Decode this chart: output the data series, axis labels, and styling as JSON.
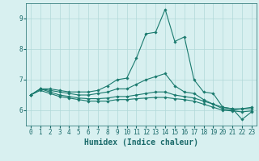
{
  "xlabel": "Humidex (Indice chaleur)",
  "x_values": [
    0,
    1,
    2,
    3,
    4,
    5,
    6,
    7,
    8,
    9,
    10,
    11,
    12,
    13,
    14,
    15,
    16,
    17,
    18,
    19,
    20,
    21,
    22,
    23
  ],
  "lines": [
    [
      6.5,
      6.7,
      6.7,
      6.65,
      6.6,
      6.6,
      6.6,
      6.65,
      6.8,
      7.0,
      7.05,
      7.7,
      8.5,
      8.55,
      9.3,
      8.25,
      8.4,
      7.0,
      6.6,
      6.55,
      6.1,
      6.05,
      5.7,
      5.95
    ],
    [
      6.5,
      6.7,
      6.65,
      6.6,
      6.55,
      6.5,
      6.5,
      6.55,
      6.6,
      6.7,
      6.7,
      6.85,
      7.0,
      7.1,
      7.2,
      6.8,
      6.6,
      6.55,
      6.35,
      6.2,
      6.05,
      6.0,
      6.05,
      6.1
    ],
    [
      6.5,
      6.7,
      6.6,
      6.5,
      6.45,
      6.4,
      6.38,
      6.38,
      6.4,
      6.45,
      6.45,
      6.5,
      6.55,
      6.6,
      6.6,
      6.5,
      6.45,
      6.4,
      6.3,
      6.2,
      6.1,
      6.05,
      6.05,
      6.05
    ],
    [
      6.5,
      6.65,
      6.55,
      6.45,
      6.4,
      6.35,
      6.3,
      6.3,
      6.3,
      6.35,
      6.35,
      6.38,
      6.4,
      6.42,
      6.42,
      6.38,
      6.35,
      6.3,
      6.2,
      6.1,
      6.0,
      5.98,
      5.95,
      5.98
    ]
  ],
  "line_color": "#1a7a6e",
  "marker": "D",
  "markersize": 1.8,
  "linewidth": 0.8,
  "ylim": [
    5.5,
    9.5
  ],
  "yticks": [
    6,
    7,
    8,
    9
  ],
  "xticks": [
    0,
    1,
    2,
    3,
    4,
    5,
    6,
    7,
    8,
    9,
    10,
    11,
    12,
    13,
    14,
    15,
    16,
    17,
    18,
    19,
    20,
    21,
    22,
    23
  ],
  "bg_color": "#d8f0f0",
  "grid_color": "#b0d8d8",
  "tick_label_color": "#1a6a6a",
  "label_color": "#1a6a6a",
  "tick_fontsize": 5.5,
  "label_fontsize": 7.0
}
